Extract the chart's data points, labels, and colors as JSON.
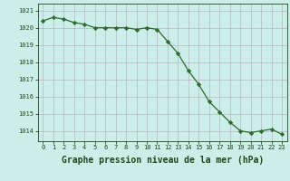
{
  "x": [
    0,
    1,
    2,
    3,
    4,
    5,
    6,
    7,
    8,
    9,
    10,
    11,
    12,
    13,
    14,
    15,
    16,
    17,
    18,
    19,
    20,
    21,
    22,
    23
  ],
  "y": [
    1020.4,
    1020.6,
    1020.5,
    1020.3,
    1020.2,
    1020.0,
    1020.0,
    1020.0,
    1020.0,
    1019.9,
    1020.0,
    1019.9,
    1019.2,
    1018.5,
    1017.5,
    1016.7,
    1015.7,
    1015.1,
    1014.5,
    1014.0,
    1013.9,
    1014.0,
    1014.1,
    1013.8
  ],
  "line_color": "#2d6a2d",
  "marker": "D",
  "marker_size": 2.2,
  "bg_color": "#cceee8",
  "grid_color": "#c0b0c8",
  "label_color": "#1a4a1a",
  "xlabel": "Graphe pression niveau de la mer (hPa)",
  "xlabel_fontsize": 7,
  "ylabel_ticks": [
    1014,
    1015,
    1016,
    1017,
    1018,
    1019,
    1020,
    1021
  ],
  "xtick_labels": [
    "0",
    "1",
    "2",
    "3",
    "4",
    "5",
    "6",
    "7",
    "8",
    "9",
    "10",
    "11",
    "12",
    "13",
    "14",
    "15",
    "16",
    "17",
    "18",
    "19",
    "20",
    "21",
    "22",
    "23"
  ],
  "xticks": [
    0,
    1,
    2,
    3,
    4,
    5,
    6,
    7,
    8,
    9,
    10,
    11,
    12,
    13,
    14,
    15,
    16,
    17,
    18,
    19,
    20,
    21,
    22,
    23
  ],
  "ylim": [
    1013.4,
    1021.4
  ],
  "xlim": [
    -0.5,
    23.5
  ]
}
